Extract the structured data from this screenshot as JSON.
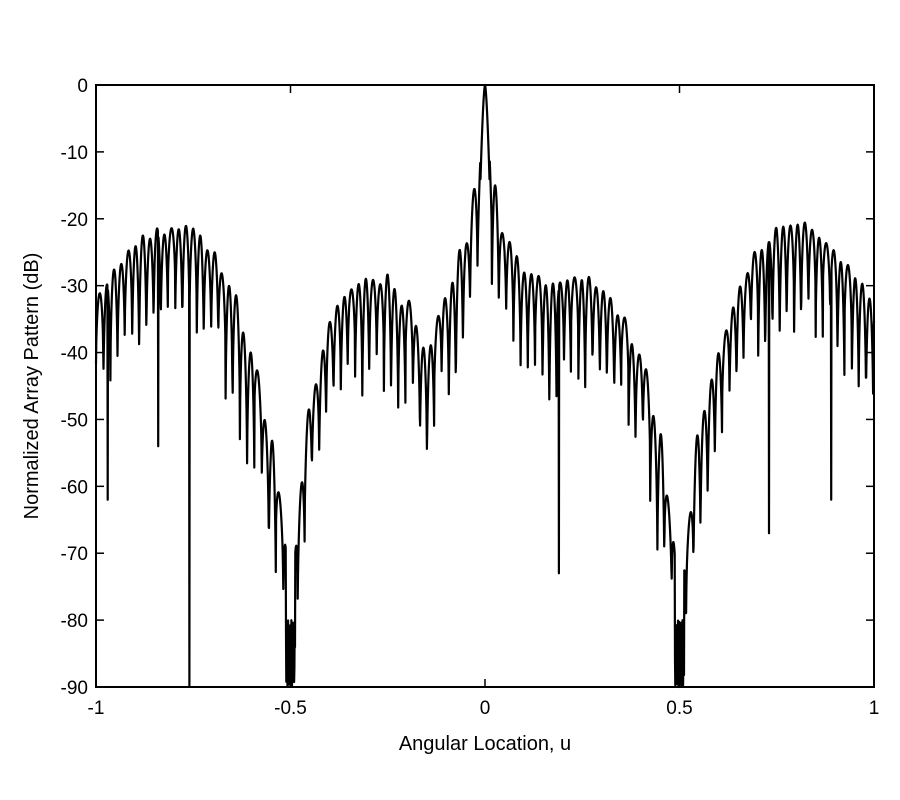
{
  "chart_data": {
    "type": "line",
    "title": "",
    "xlabel": "Angular Location, u",
    "ylabel": "Normalized Array Pattern (dB)",
    "xlim": [
      -1,
      1
    ],
    "ylim": [
      -90,
      0
    ],
    "xticks": [
      -1,
      -0.5,
      0,
      0.5,
      1
    ],
    "xtick_labels": [
      "-1",
      "-0.5",
      "0",
      "0.5",
      "1"
    ],
    "yticks": [
      0,
      -10,
      -20,
      -30,
      -40,
      -50,
      -60,
      -70,
      -80,
      -90
    ],
    "ytick_labels": [
      "0",
      "-10",
      "-20",
      "-30",
      "-40",
      "-50",
      "-60",
      "-70",
      "-80",
      "-90"
    ],
    "grid": false,
    "legend": null,
    "series": [
      {
        "name": "Normalized Array Pattern",
        "color": "#000000",
        "description": "Densely oscillating sidelobe pattern; main beam 0 dB at u=0, deep nulls near u=±0.5 reaching -80 to -90 dB, side humps peaking about -20 dB near u=±0.78 and about -28 dB near u=±0.27",
        "envelope_peaks": {
          "u": [
            -1.0,
            -0.95,
            -0.9,
            -0.85,
            -0.8,
            -0.75,
            -0.7,
            -0.65,
            -0.6,
            -0.55,
            -0.52,
            -0.5,
            -0.48,
            -0.45,
            -0.4,
            -0.35,
            -0.3,
            -0.25,
            -0.2,
            -0.15,
            -0.1,
            -0.05,
            -0.02,
            0.0,
            0.02,
            0.05,
            0.1,
            0.15,
            0.2,
            0.25,
            0.3,
            0.35,
            0.4,
            0.45,
            0.48,
            0.5,
            0.52,
            0.55,
            0.6,
            0.65,
            0.7,
            0.75,
            0.8,
            0.85,
            0.9,
            0.95,
            1.0
          ],
          "db": [
            -31,
            -27,
            -23,
            -21,
            -20,
            -21,
            -24,
            -30,
            -39,
            -52,
            -62,
            -80,
            -62,
            -46,
            -35,
            -29,
            -28,
            -28,
            -32,
            -38,
            -30,
            -22,
            -14,
            0,
            -14,
            -22,
            -27,
            -28,
            -28,
            -28,
            -29,
            -33,
            -40,
            -52,
            -64,
            -80,
            -64,
            -50,
            -39,
            -30,
            -24,
            -21,
            -20,
            -21,
            -24,
            -27,
            -31
          ]
        },
        "notable_deep_nulls": [
          {
            "u": -0.76,
            "db": -90
          },
          {
            "u": -0.84,
            "db": -54
          },
          {
            "u": -0.97,
            "db": -62
          },
          {
            "u": -0.5,
            "db": -90
          },
          {
            "u": 0.5,
            "db": -90
          },
          {
            "u": 0.19,
            "db": -73
          },
          {
            "u": 0.73,
            "db": -67
          },
          {
            "u": 0.89,
            "db": -62
          }
        ],
        "lobe_spacing_u": 0.0185
      }
    ]
  }
}
